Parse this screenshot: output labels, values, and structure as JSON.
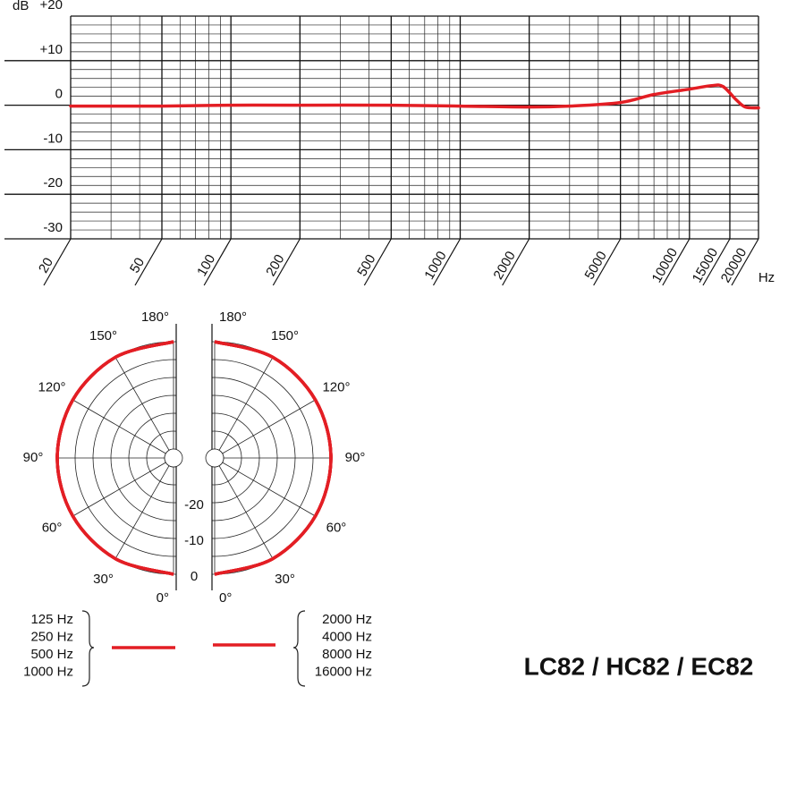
{
  "model": "LC82 / HC82 / EC82",
  "chart_data": [
    {
      "type": "line",
      "y_label": "dB",
      "x_label": "Hz",
      "log_x": true,
      "grid": true,
      "xlim": [
        20,
        20000
      ],
      "ylim": [
        -30,
        20
      ],
      "xticks": [
        20,
        50,
        100,
        200,
        500,
        1000,
        2000,
        5000,
        10000,
        15000,
        20000
      ],
      "x_minor_ticks": [
        30,
        40,
        60,
        70,
        80,
        90,
        300,
        400,
        600,
        700,
        800,
        900,
        3000,
        4000,
        6000,
        7000,
        8000,
        9000
      ],
      "yticks": [
        {
          "value": 20,
          "label": "+20"
        },
        {
          "value": 10,
          "label": "+10"
        },
        0,
        -10,
        -20,
        -30
      ],
      "y_minor_ticks": [
        18,
        16,
        14,
        12,
        8,
        6,
        4,
        2,
        -2,
        -4,
        -6,
        -8,
        -12,
        -14,
        -16,
        -18,
        -22,
        -24,
        -26,
        -28
      ],
      "x": [
        20,
        50,
        100,
        200,
        500,
        1000,
        2000,
        3000,
        5000,
        7000,
        10000,
        12500,
        14000,
        16000,
        17500,
        20000
      ],
      "series": [
        {
          "color": "#e31e24",
          "values": [
            -0.2,
            -0.2,
            0,
            0,
            0,
            -0.2,
            -0.4,
            -0.2,
            0.6,
            2.4,
            3.6,
            4.4,
            4.2,
            1.2,
            -0.4,
            -0.6
          ]
        }
      ]
    },
    {
      "type": "polar",
      "rlim": [
        -30,
        0
      ],
      "rticks": [
        -20,
        -10,
        0
      ],
      "r_minor_ticks": [
        -30,
        -25,
        -15,
        -5
      ],
      "theta": [
        0,
        30,
        60,
        90,
        120,
        150,
        180
      ],
      "theta_ticks": [
        {
          "value": 0,
          "label": "0°"
        },
        {
          "value": 30,
          "label": "30°"
        },
        {
          "value": 60,
          "label": "60°"
        },
        {
          "value": 90,
          "label": "90°"
        },
        {
          "value": 120,
          "label": "120°"
        },
        {
          "value": 150,
          "label": "150°"
        },
        {
          "value": 180,
          "label": "180°"
        }
      ],
      "series": [
        {
          "name": "125 Hz",
          "side": "left",
          "color": "#e31e24",
          "values": [
            0,
            0,
            0,
            0,
            0,
            0,
            0
          ]
        },
        {
          "name": "250 Hz",
          "side": "left",
          "color": "#e31e24",
          "values": [
            0,
            0,
            0,
            0,
            0,
            0,
            0
          ]
        },
        {
          "name": "500 Hz",
          "side": "left",
          "color": "#e31e24",
          "values": [
            0,
            0,
            0,
            0,
            0,
            0,
            0
          ]
        },
        {
          "name": "1000 Hz",
          "side": "left",
          "color": "#e31e24",
          "values": [
            0,
            0,
            0,
            0,
            0,
            0,
            0
          ]
        },
        {
          "name": "2000 Hz",
          "side": "right",
          "color": "#e31e24",
          "values": [
            0,
            0,
            0,
            0,
            0,
            0,
            0
          ]
        },
        {
          "name": "4000 Hz",
          "side": "right",
          "color": "#e31e24",
          "values": [
            0,
            0,
            0,
            0,
            0,
            0,
            0
          ]
        },
        {
          "name": "8000 Hz",
          "side": "right",
          "color": "#e31e24",
          "values": [
            0,
            0,
            0,
            0,
            0,
            0,
            0
          ]
        },
        {
          "name": "16000 Hz",
          "side": "right",
          "color": "#e31e24",
          "values": [
            0,
            0,
            0,
            0,
            0,
            0,
            0
          ]
        }
      ]
    }
  ]
}
